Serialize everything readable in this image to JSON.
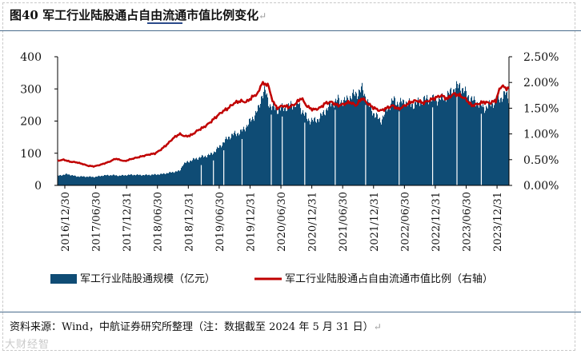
{
  "title": "图40  军工行业陆股通占自由流通市值比例变化",
  "para_mark": "↵",
  "source": "资料来源：Wind，中航证券研究所整理（注：数据截至 2024 年 5 月 31 日）",
  "watermark": "大财经智",
  "colors": {
    "bars": "#0f4c75",
    "line": "#c00000",
    "axis": "#000000"
  },
  "chart_data": {
    "type": "bar+line",
    "left_axis": {
      "ticks": [
        "0",
        "100",
        "200",
        "300",
        "400"
      ],
      "min": 0,
      "max": 400
    },
    "right_axis": {
      "ticks": [
        "0.00%",
        "0.50%",
        "1.00%",
        "1.50%",
        "2.00%",
        "2.50%"
      ],
      "min": 0,
      "max": 2.5
    },
    "x_tick_labels": [
      "2016/12/30",
      "2017/06/30",
      "2017/12/31",
      "2018/06/30",
      "2018/12/31",
      "2019/06/30",
      "2019/12/31",
      "2020/06/30",
      "2020/12/31",
      "2021/06/30",
      "2021/12/31",
      "2022/06/30",
      "2022/12/31",
      "2023/06/30",
      "2023/12/31"
    ],
    "x_start": 2016.9986,
    "x_end": 2024.4122,
    "legend": [
      "军工行业陆股通规模（亿元）",
      "军工行业陆股通占自由流通市值比例（右轴）"
    ],
    "series": [
      {
        "name": "军工行业陆股通规模（亿元）",
        "axis": "left",
        "kind": "bar",
        "points": [
          [
            2017.0,
            30
          ],
          [
            2017.15,
            35
          ],
          [
            2017.3,
            28
          ],
          [
            2017.5,
            27
          ],
          [
            2017.6,
            26
          ],
          [
            2017.75,
            31
          ],
          [
            2017.9,
            32
          ],
          [
            2018.0,
            30
          ],
          [
            2018.2,
            33
          ],
          [
            2018.4,
            32
          ],
          [
            2018.55,
            33
          ],
          [
            2018.7,
            35
          ],
          [
            2018.85,
            40
          ],
          [
            2019.0,
            45
          ],
          [
            2019.05,
            65
          ],
          [
            2019.15,
            75
          ],
          [
            2019.25,
            82
          ],
          [
            2019.35,
            88
          ],
          [
            2019.5,
            95
          ],
          [
            2019.6,
            110
          ],
          [
            2019.7,
            130
          ],
          [
            2019.8,
            150
          ],
          [
            2019.9,
            160
          ],
          [
            2020.0,
            165
          ],
          [
            2020.1,
            185
          ],
          [
            2020.2,
            210
          ],
          [
            2020.3,
            240
          ],
          [
            2020.35,
            285
          ],
          [
            2020.4,
            295
          ],
          [
            2020.45,
            260
          ],
          [
            2020.5,
            245
          ],
          [
            2020.6,
            235
          ],
          [
            2020.7,
            240
          ],
          [
            2020.85,
            250
          ],
          [
            2020.95,
            255
          ],
          [
            2021.0,
            235
          ],
          [
            2021.1,
            205
          ],
          [
            2021.2,
            200
          ],
          [
            2021.3,
            210
          ],
          [
            2021.4,
            235
          ],
          [
            2021.5,
            255
          ],
          [
            2021.6,
            265
          ],
          [
            2021.7,
            260
          ],
          [
            2021.8,
            275
          ],
          [
            2021.9,
            285
          ],
          [
            2022.0,
            300
          ],
          [
            2022.1,
            250
          ],
          [
            2022.2,
            220
          ],
          [
            2022.3,
            200
          ],
          [
            2022.4,
            235
          ],
          [
            2022.5,
            265
          ],
          [
            2022.6,
            255
          ],
          [
            2022.7,
            260
          ],
          [
            2022.8,
            250
          ],
          [
            2022.9,
            255
          ],
          [
            2023.0,
            265
          ],
          [
            2023.1,
            270
          ],
          [
            2023.2,
            265
          ],
          [
            2023.3,
            270
          ],
          [
            2023.4,
            280
          ],
          [
            2023.5,
            300
          ],
          [
            2023.6,
            310
          ],
          [
            2023.7,
            285
          ],
          [
            2023.8,
            265
          ],
          [
            2023.9,
            255
          ],
          [
            2024.0,
            240
          ],
          [
            2024.1,
            250
          ],
          [
            2024.2,
            265
          ],
          [
            2024.3,
            275
          ],
          [
            2024.35,
            285
          ],
          [
            2024.41,
            270
          ]
        ]
      },
      {
        "name": "军工行业陆股通占自由流通市值比例（右轴）",
        "axis": "right",
        "kind": "line",
        "points": [
          [
            2017.0,
            0.48
          ],
          [
            2017.1,
            0.5
          ],
          [
            2017.2,
            0.46
          ],
          [
            2017.3,
            0.45
          ],
          [
            2017.4,
            0.42
          ],
          [
            2017.5,
            0.38
          ],
          [
            2017.6,
            0.37
          ],
          [
            2017.7,
            0.4
          ],
          [
            2017.85,
            0.46
          ],
          [
            2017.95,
            0.52
          ],
          [
            2018.1,
            0.47
          ],
          [
            2018.2,
            0.51
          ],
          [
            2018.3,
            0.54
          ],
          [
            2018.4,
            0.57
          ],
          [
            2018.5,
            0.6
          ],
          [
            2018.6,
            0.62
          ],
          [
            2018.7,
            0.7
          ],
          [
            2018.8,
            0.8
          ],
          [
            2018.9,
            0.92
          ],
          [
            2019.0,
            1.0
          ],
          [
            2019.1,
            0.95
          ],
          [
            2019.2,
            0.98
          ],
          [
            2019.3,
            1.07
          ],
          [
            2019.4,
            1.13
          ],
          [
            2019.5,
            1.22
          ],
          [
            2019.6,
            1.33
          ],
          [
            2019.7,
            1.43
          ],
          [
            2019.8,
            1.5
          ],
          [
            2019.9,
            1.6
          ],
          [
            2020.0,
            1.64
          ],
          [
            2020.1,
            1.62
          ],
          [
            2020.2,
            1.72
          ],
          [
            2020.3,
            1.8
          ],
          [
            2020.35,
            2.0
          ],
          [
            2020.4,
            1.95
          ],
          [
            2020.45,
            1.98
          ],
          [
            2020.5,
            1.75
          ],
          [
            2020.55,
            1.6
          ],
          [
            2020.6,
            1.5
          ],
          [
            2020.7,
            1.55
          ],
          [
            2020.8,
            1.52
          ],
          [
            2020.9,
            1.58
          ],
          [
            2021.0,
            1.7
          ],
          [
            2021.1,
            1.53
          ],
          [
            2021.2,
            1.47
          ],
          [
            2021.3,
            1.5
          ],
          [
            2021.4,
            1.6
          ],
          [
            2021.5,
            1.62
          ],
          [
            2021.6,
            1.55
          ],
          [
            2021.7,
            1.58
          ],
          [
            2021.8,
            1.62
          ],
          [
            2021.9,
            1.55
          ],
          [
            2022.0,
            1.7
          ],
          [
            2022.1,
            1.58
          ],
          [
            2022.2,
            1.5
          ],
          [
            2022.3,
            1.45
          ],
          [
            2022.4,
            1.5
          ],
          [
            2022.5,
            1.55
          ],
          [
            2022.6,
            1.48
          ],
          [
            2022.7,
            1.55
          ],
          [
            2022.8,
            1.62
          ],
          [
            2022.9,
            1.65
          ],
          [
            2023.0,
            1.6
          ],
          [
            2023.1,
            1.65
          ],
          [
            2023.2,
            1.7
          ],
          [
            2023.3,
            1.75
          ],
          [
            2023.4,
            1.68
          ],
          [
            2023.5,
            1.78
          ],
          [
            2023.6,
            1.75
          ],
          [
            2023.7,
            1.68
          ],
          [
            2023.8,
            1.55
          ],
          [
            2023.9,
            1.58
          ],
          [
            2024.0,
            1.62
          ],
          [
            2024.1,
            1.6
          ],
          [
            2024.2,
            1.65
          ],
          [
            2024.25,
            1.85
          ],
          [
            2024.3,
            1.95
          ],
          [
            2024.35,
            1.88
          ],
          [
            2024.41,
            1.9
          ]
        ]
      }
    ]
  }
}
